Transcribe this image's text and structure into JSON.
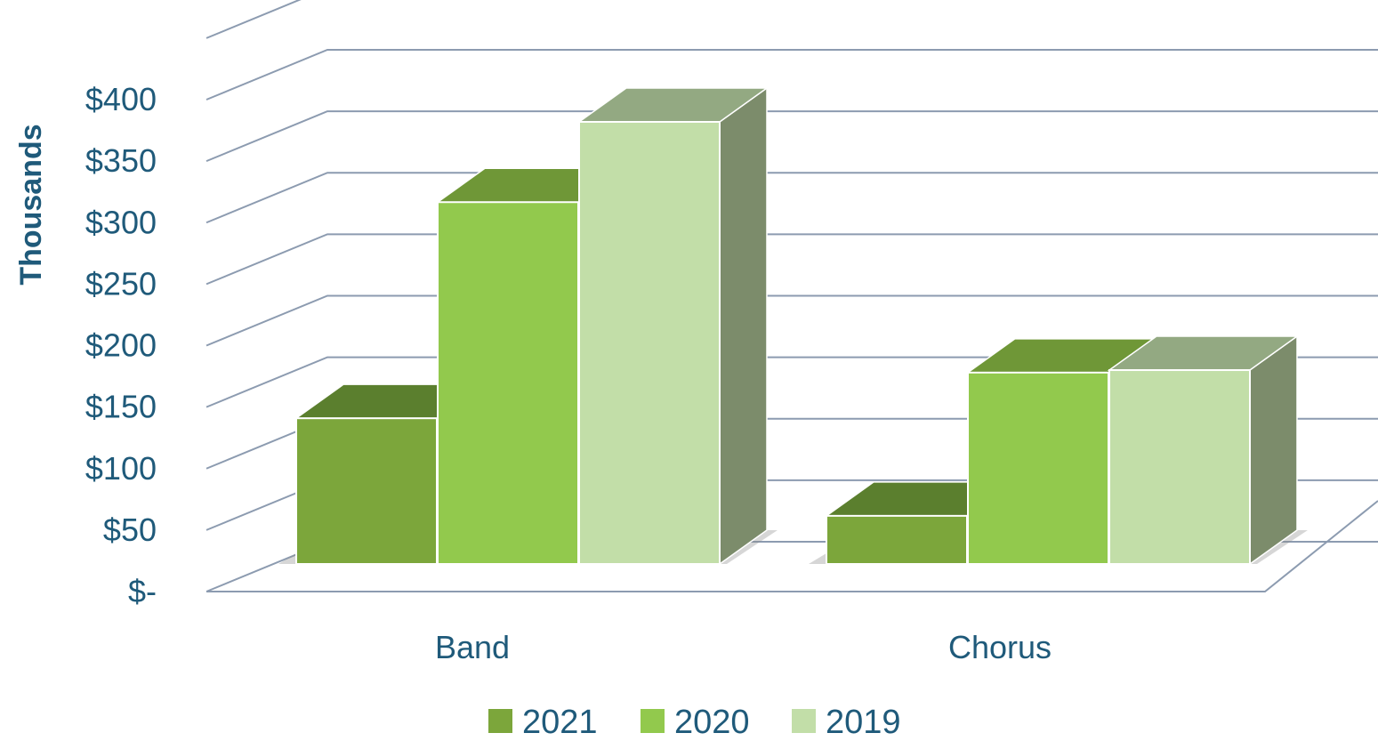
{
  "chart_data": {
    "type": "bar",
    "style": "3d-clustered-column",
    "title": "",
    "xlabel": "",
    "ylabel": "Thousands",
    "categories": [
      "Band",
      "Chorus"
    ],
    "series": [
      {
        "name": "2021",
        "values": [
          118,
          39
        ],
        "color": "#7ca63b",
        "top_color": "#5b7f2e",
        "side_color": "#5a7d2c"
      },
      {
        "name": "2020",
        "values": [
          293,
          155
        ],
        "color": "#92c94d",
        "top_color": "#6f9737",
        "side_color": "#6f9737"
      },
      {
        "name": "2019",
        "values": [
          358,
          157
        ],
        "color": "#c2dea8",
        "top_color": "#93a982",
        "side_color": "#7c8c6b"
      }
    ],
    "ylim": [
      0,
      400
    ],
    "yticks": [
      0,
      50,
      100,
      150,
      200,
      250,
      300,
      350,
      400
    ],
    "ytick_labels": [
      "$-",
      "$50",
      "$100",
      "$150",
      "$200",
      "$250",
      "$300",
      "$350",
      "$400"
    ],
    "grid": true,
    "legend_position": "bottom",
    "colors": {
      "text": "#1f5a7a",
      "grid": "#8c9bb0"
    }
  }
}
